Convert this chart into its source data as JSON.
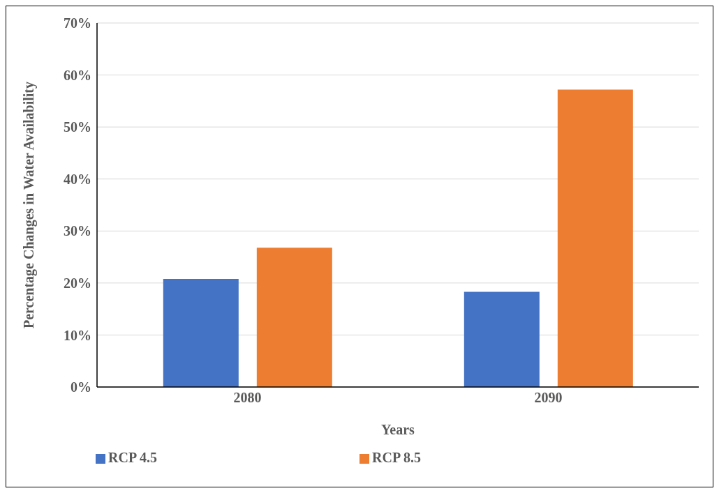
{
  "chart_data": {
    "type": "bar",
    "xlabel": "Years",
    "ylabel": "Percentage Changes in Water Availability",
    "categories": [
      "2080",
      "2090"
    ],
    "series": [
      {
        "name": "RCP 4.5",
        "color": "#4472c4",
        "values": [
          20.8,
          18.3
        ]
      },
      {
        "name": "RCP 8.5",
        "color": "#ed7d31",
        "values": [
          26.8,
          57.2
        ]
      }
    ],
    "ylim": [
      0,
      70
    ],
    "yticks": [
      {
        "value": 0,
        "label": "0%"
      },
      {
        "value": 10,
        "label": "10%"
      },
      {
        "value": 20,
        "label": "20%"
      },
      {
        "value": 30,
        "label": "30%"
      },
      {
        "value": 40,
        "label": "40%"
      },
      {
        "value": 50,
        "label": "50%"
      },
      {
        "value": 60,
        "label": "60%"
      },
      {
        "value": 70,
        "label": "70%"
      }
    ],
    "grid": "y",
    "legend": "bottom"
  }
}
